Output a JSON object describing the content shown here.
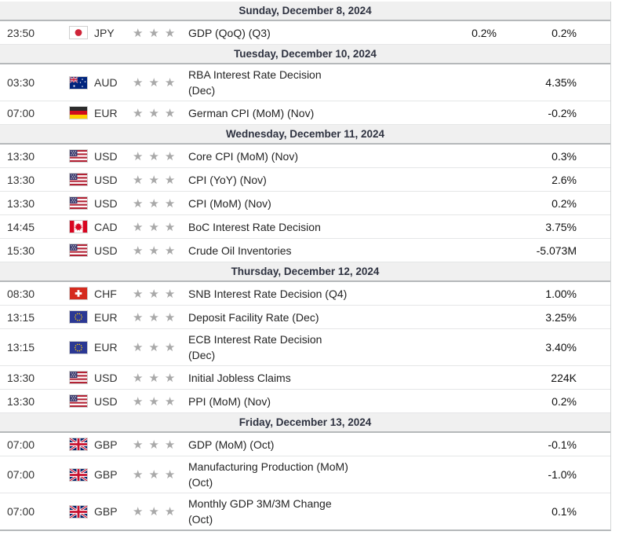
{
  "calendar": {
    "colors": {
      "header_bg": "#f0f0f0",
      "header_text": "#2e3240",
      "dark_divider": "#b5b8ba",
      "light_divider": "#e5e6e7",
      "star_gray": "#a9a9a9",
      "body_text": "#232323"
    },
    "icons": {
      "star": "★"
    },
    "days": [
      {
        "date_label": "Sunday, December 8, 2024",
        "events": [
          {
            "time": "23:50",
            "currency": "JPY",
            "flag": "japan",
            "importance_stars": 3,
            "event_line1": "GDP (QoQ) (Q3)",
            "event_line2": "",
            "value1": "0.2%",
            "value2": "0.2%"
          }
        ]
      },
      {
        "date_label": "Tuesday, December 10, 2024",
        "events": [
          {
            "time": "03:30",
            "currency": "AUD",
            "flag": "australia",
            "importance_stars": 3,
            "event_line1": "RBA Interest Rate Decision",
            "event_line2": "(Dec)",
            "value1": "",
            "value2": "4.35%"
          },
          {
            "time": "07:00",
            "currency": "EUR",
            "flag": "germany",
            "importance_stars": 3,
            "event_line1": "German CPI (MoM) (Nov)",
            "event_line2": "",
            "value1": "",
            "value2": "-0.2%"
          }
        ]
      },
      {
        "date_label": "Wednesday, December 11, 2024",
        "events": [
          {
            "time": "13:30",
            "currency": "USD",
            "flag": "us",
            "importance_stars": 3,
            "event_line1": "Core CPI (MoM) (Nov)",
            "event_line2": "",
            "value1": "",
            "value2": "0.3%"
          },
          {
            "time": "13:30",
            "currency": "USD",
            "flag": "us",
            "importance_stars": 3,
            "event_line1": "CPI (YoY) (Nov)",
            "event_line2": "",
            "value1": "",
            "value2": "2.6%"
          },
          {
            "time": "13:30",
            "currency": "USD",
            "flag": "us",
            "importance_stars": 3,
            "event_line1": "CPI (MoM) (Nov)",
            "event_line2": "",
            "value1": "",
            "value2": "0.2%"
          },
          {
            "time": "14:45",
            "currency": "CAD",
            "flag": "canada",
            "importance_stars": 3,
            "event_line1": "BoC Interest Rate Decision",
            "event_line2": "",
            "value1": "",
            "value2": "3.75%"
          },
          {
            "time": "15:30",
            "currency": "USD",
            "flag": "us",
            "importance_stars": 3,
            "event_line1": "Crude Oil Inventories",
            "event_line2": "",
            "value1": "",
            "value2": "-5.073M"
          }
        ]
      },
      {
        "date_label": "Thursday, December 12, 2024",
        "events": [
          {
            "time": "08:30",
            "currency": "CHF",
            "flag": "switzerland",
            "importance_stars": 3,
            "event_line1": "SNB Interest Rate Decision (Q4)",
            "event_line2": "",
            "value1": "",
            "value2": "1.00%"
          },
          {
            "time": "13:15",
            "currency": "EUR",
            "flag": "eu",
            "importance_stars": 3,
            "event_line1": "Deposit Facility Rate (Dec)",
            "event_line2": "",
            "value1": "",
            "value2": "3.25%"
          },
          {
            "time": "13:15",
            "currency": "EUR",
            "flag": "eu",
            "importance_stars": 3,
            "event_line1": "ECB Interest Rate Decision",
            "event_line2": "(Dec)",
            "value1": "",
            "value2": "3.40%"
          },
          {
            "time": "13:30",
            "currency": "USD",
            "flag": "us",
            "importance_stars": 3,
            "event_line1": "Initial Jobless Claims",
            "event_line2": "",
            "value1": "",
            "value2": "224K"
          },
          {
            "time": "13:30",
            "currency": "USD",
            "flag": "us",
            "importance_stars": 3,
            "event_line1": "PPI (MoM) (Nov)",
            "event_line2": "",
            "value1": "",
            "value2": "0.2%"
          }
        ]
      },
      {
        "date_label": "Friday, December 13, 2024",
        "events": [
          {
            "time": "07:00",
            "currency": "GBP",
            "flag": "uk",
            "importance_stars": 3,
            "event_line1": "GDP (MoM) (Oct)",
            "event_line2": "",
            "value1": "",
            "value2": "-0.1%"
          },
          {
            "time": "07:00",
            "currency": "GBP",
            "flag": "uk",
            "importance_stars": 3,
            "event_line1": "Manufacturing Production (MoM)",
            "event_line2": "(Oct)",
            "value1": "",
            "value2": "-1.0%"
          },
          {
            "time": "07:00",
            "currency": "GBP",
            "flag": "uk",
            "importance_stars": 3,
            "event_line1": "Monthly GDP 3M/3M Change",
            "event_line2": "(Oct)",
            "value1": "",
            "value2": "0.1%"
          }
        ]
      }
    ]
  }
}
